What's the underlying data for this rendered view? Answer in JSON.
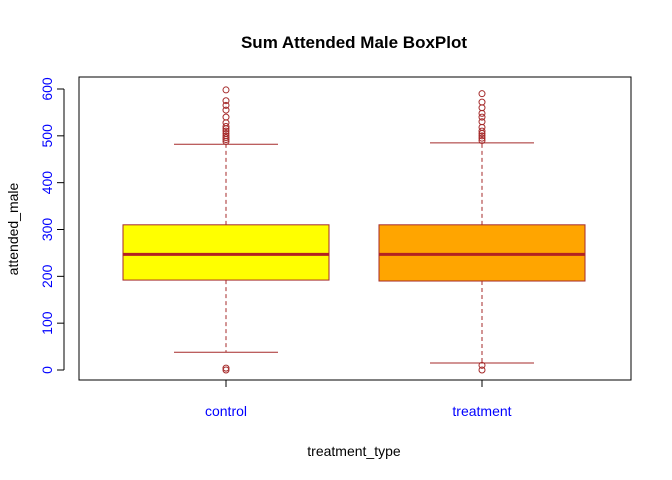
{
  "chart_data": {
    "type": "boxplot",
    "title": "Sum Attended Male BoxPlot",
    "xlabel": "treatment_type",
    "ylabel": "attended_male",
    "categories": [
      "control",
      "treatment"
    ],
    "ylim": [
      -20,
      620
    ],
    "yticks": [
      0,
      100,
      200,
      300,
      400,
      500,
      600
    ],
    "ytick_labels": [
      "0",
      "100",
      "200",
      "300",
      "400",
      "500",
      "600"
    ],
    "boxes": [
      {
        "name": "control",
        "fill": "#ffff00",
        "whisker_low": 38,
        "q1": 192,
        "median": 247,
        "q3": 310,
        "whisker_high": 482,
        "outliers": [
          0,
          4,
          488,
          492,
          496,
          500,
          505,
          510,
          515,
          520,
          528,
          540,
          555,
          565,
          575,
          598
        ]
      },
      {
        "name": "treatment",
        "fill": "#ffa500",
        "whisker_low": 15,
        "q1": 190,
        "median": 247,
        "q3": 310,
        "whisker_high": 485,
        "outliers": [
          0,
          10,
          490,
          495,
          500,
          505,
          510,
          518,
          530,
          540,
          548,
          560,
          572,
          590
        ]
      }
    ],
    "colors": {
      "border": "#a52a2a",
      "median": "#b22222",
      "tick_labels": "#0000ff",
      "axis_titles": "#ff0000",
      "frame": "#000000"
    },
    "grid": false
  }
}
